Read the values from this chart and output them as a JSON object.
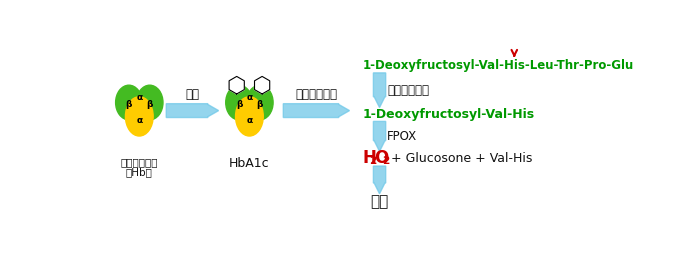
{
  "bg_color": "#ffffff",
  "arrow_color": "#70c8e8",
  "green_color": "#009900",
  "red_color": "#cc0000",
  "dark_color": "#111111",
  "hb_label_line1": "ヘモグロビン",
  "hb_label_line2": "（Hb）",
  "hba1c_label": "HbA1c",
  "glycation_label": "糖化",
  "protease1_label": "プロテアーゼ",
  "peptide_full": "1-Deoxyfructosyl-Val-His-Leu-Thr-Pro-Glu",
  "protease2_label": "プロテアーゼ",
  "peptide_short": "1-Deoxyfructosyl-Val-His",
  "fpox_label": "FPOX",
  "detection_label": "検出",
  "green_bold_fontsize": 8.5,
  "label_fontsize": 8.5,
  "small_fontsize": 7.5
}
